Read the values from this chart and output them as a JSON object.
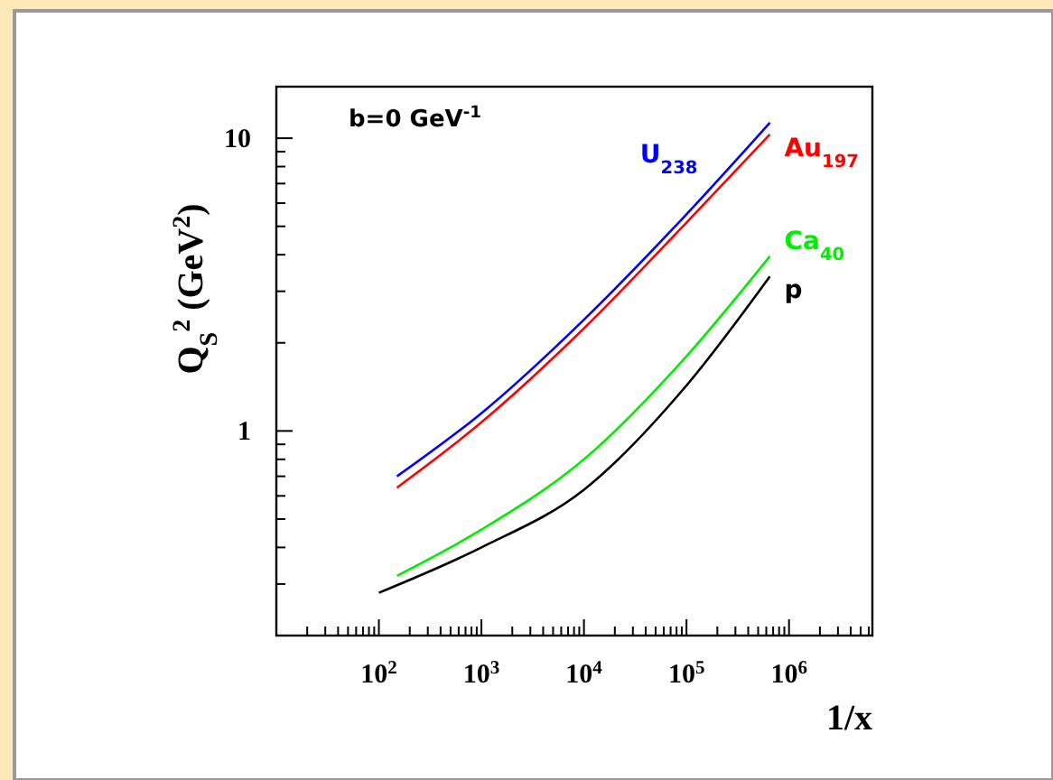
{
  "chart_data": {
    "type": "line",
    "xlabel": "1/x",
    "ylabel": "Q$_{S}$$^{2}$ (GeV$^{2}$)",
    "annotations": [
      "b=0 GeV$^{-1}$"
    ],
    "log": "xy",
    "grid": false,
    "marker": "none",
    "line_style": "solid",
    "xlim": [
      10,
      6500000
    ],
    "ylim": [
      0.2,
      15
    ],
    "xticks": [
      {
        "value": 20,
        "label": null
      },
      {
        "value": 30,
        "label": null
      },
      {
        "value": 40,
        "label": null
      },
      {
        "value": 50,
        "label": null
      },
      {
        "value": 60,
        "label": null
      },
      {
        "value": 70,
        "label": null
      },
      {
        "value": 80,
        "label": null
      },
      {
        "value": 90,
        "label": null
      },
      {
        "value": 100,
        "label": "10$^{2}$"
      },
      {
        "value": 200,
        "label": null
      },
      {
        "value": 300,
        "label": null
      },
      {
        "value": 400,
        "label": null
      },
      {
        "value": 500,
        "label": null
      },
      {
        "value": 600,
        "label": null
      },
      {
        "value": 700,
        "label": null
      },
      {
        "value": 800,
        "label": null
      },
      {
        "value": 900,
        "label": null
      },
      {
        "value": 1000,
        "label": "10$^{3}$"
      },
      {
        "value": 2000,
        "label": null
      },
      {
        "value": 3000,
        "label": null
      },
      {
        "value": 4000,
        "label": null
      },
      {
        "value": 5000,
        "label": null
      },
      {
        "value": 6000,
        "label": null
      },
      {
        "value": 7000,
        "label": null
      },
      {
        "value": 8000,
        "label": null
      },
      {
        "value": 9000,
        "label": null
      },
      {
        "value": 10000,
        "label": "10$^{4}$"
      },
      {
        "value": 20000,
        "label": null
      },
      {
        "value": 30000,
        "label": null
      },
      {
        "value": 40000,
        "label": null
      },
      {
        "value": 50000,
        "label": null
      },
      {
        "value": 60000,
        "label": null
      },
      {
        "value": 70000,
        "label": null
      },
      {
        "value": 80000,
        "label": null
      },
      {
        "value": 90000,
        "label": null
      },
      {
        "value": 100000,
        "label": "10$^{5}$"
      },
      {
        "value": 200000,
        "label": null
      },
      {
        "value": 300000,
        "label": null
      },
      {
        "value": 400000,
        "label": null
      },
      {
        "value": 500000,
        "label": null
      },
      {
        "value": 600000,
        "label": null
      },
      {
        "value": 700000,
        "label": null
      },
      {
        "value": 800000,
        "label": null
      },
      {
        "value": 900000,
        "label": null
      },
      {
        "value": 1000000,
        "label": "10$^{6}$"
      },
      {
        "value": 2000000,
        "label": null
      },
      {
        "value": 3000000,
        "label": null
      },
      {
        "value": 4000000,
        "label": null
      },
      {
        "value": 5000000,
        "label": null
      },
      {
        "value": 6000000,
        "label": null
      }
    ],
    "yticks": [
      {
        "value": 0.2,
        "label": null
      },
      {
        "value": 0.3,
        "label": null
      },
      {
        "value": 0.4,
        "label": null
      },
      {
        "value": 0.5,
        "label": null
      },
      {
        "value": 0.6,
        "label": null
      },
      {
        "value": 0.7,
        "label": null
      },
      {
        "value": 0.8,
        "label": null
      },
      {
        "value": 0.9,
        "label": null
      },
      1,
      {
        "value": 2,
        "label": null
      },
      {
        "value": 3,
        "label": null
      },
      {
        "value": 4,
        "label": null
      },
      {
        "value": 5,
        "label": null
      },
      {
        "value": 6,
        "label": null
      },
      {
        "value": 7,
        "label": null
      },
      {
        "value": 8,
        "label": null
      },
      {
        "value": 9,
        "label": null
      },
      10
    ],
    "series": [
      {
        "name": "U$_{238}$",
        "color": "#0000ff",
        "x": [
          150,
          1000,
          10000,
          100000,
          650000
        ],
        "values": [
          0.7,
          1.15,
          2.4,
          5.5,
          11.3
        ]
      },
      {
        "name": "Au$_{197}$",
        "color": "#ff0000",
        "x": [
          150,
          1000,
          10000,
          100000,
          650000
        ],
        "values": [
          0.64,
          1.07,
          2.24,
          5.15,
          10.3
        ]
      },
      {
        "name": "Ca$_{40}$",
        "color": "#00ee00",
        "x": [
          150,
          1000,
          10000,
          100000,
          650000
        ],
        "values": [
          0.32,
          0.46,
          0.8,
          1.8,
          3.95
        ]
      },
      {
        "name": "p",
        "color": "#000000",
        "x": [
          100,
          1000,
          10000,
          100000,
          650000
        ],
        "values": [
          0.28,
          0.4,
          0.63,
          1.43,
          3.37
        ]
      }
    ]
  }
}
